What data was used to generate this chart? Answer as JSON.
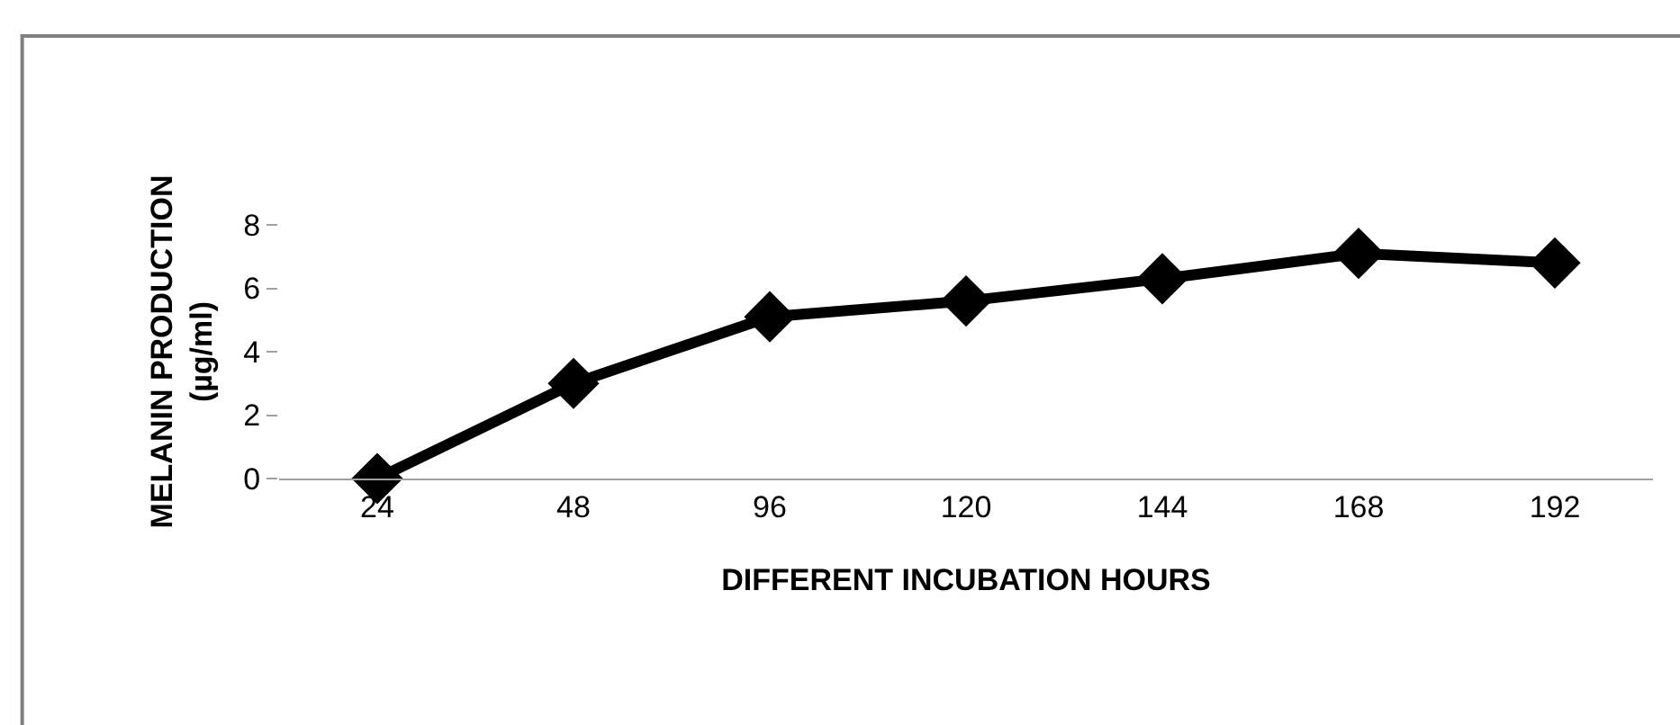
{
  "chart_data": {
    "type": "line",
    "xlabel": "DIFFERENT INCUBATION HOURS",
    "ylabel": "MELANIN PRODUCTION\n(µg/ml)",
    "categories": [
      "24",
      "48",
      "96",
      "120",
      "144",
      "168",
      "192"
    ],
    "series": [
      {
        "color": "#000000",
        "values": [
          0,
          3,
          5.1,
          5.6,
          6.3,
          7.1,
          6.8
        ]
      }
    ],
    "ylim": [
      0,
      8
    ],
    "yticks": [
      0,
      2,
      4,
      6,
      8
    ],
    "legend": false,
    "marker": "diamond",
    "line_style": "solid"
  }
}
